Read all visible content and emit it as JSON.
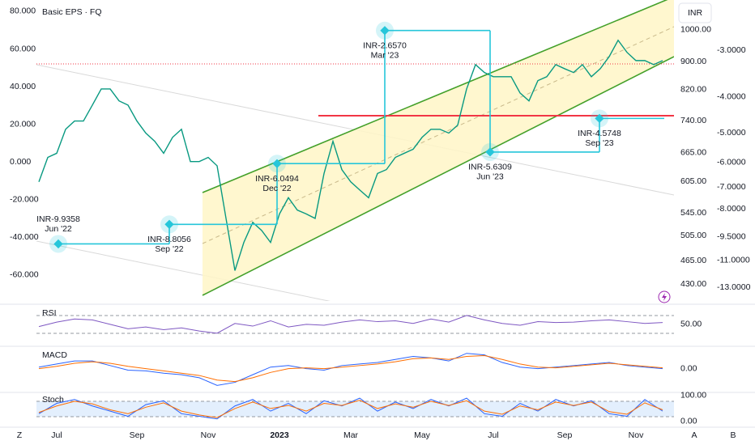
{
  "toolbar_labels": [
    "Z",
    "A",
    "B"
  ],
  "chart_data": [
    {
      "type": "line",
      "title": "Basic EPS · FQ",
      "unit_label": "INR",
      "color": "#089981",
      "categories": [
        null,
        null,
        "Jul",
        null,
        null,
        null,
        null,
        null,
        null,
        null,
        null,
        "Sep",
        null,
        null,
        null,
        null,
        null,
        null,
        null,
        "Nov",
        null,
        null,
        null,
        null,
        null,
        null,
        null,
        "2023",
        null,
        null,
        null,
        null,
        null,
        null,
        null,
        "Mar",
        null,
        null,
        null,
        null,
        null,
        null,
        null,
        "May",
        null,
        null,
        null,
        null,
        null,
        null,
        null,
        "Jul",
        null,
        null,
        null,
        null,
        null,
        null,
        null,
        "Sep",
        null,
        null,
        null,
        null,
        null,
        null,
        null,
        "Nov",
        null,
        null,
        null
      ],
      "values": [
        604,
        655,
        664,
        719,
        739,
        739,
        779,
        822,
        822,
        790,
        779,
        739,
        710,
        691,
        664,
        700,
        719,
        646,
        646,
        655,
        637,
        535,
        450,
        494,
        528,
        514,
        494,
        543,
        573,
        550,
        543,
        535,
        621,
        691,
        629,
        604,
        588,
        573,
        621,
        629,
        655,
        664,
        673,
        700,
        719,
        719,
        710,
        729,
        822,
        891,
        868,
        856,
        856,
        856,
        811,
        790,
        845,
        856,
        891,
        879,
        868,
        891,
        856,
        879,
        915,
        966,
        928,
        903,
        903,
        891,
        903
      ],
      "axis": "y2",
      "ylim": [
        -73,
        86
      ],
      "yticks": [
        {
          "value": 80,
          "label": "80.000"
        },
        {
          "value": 60,
          "label": "60.000"
        },
        {
          "value": 40,
          "label": "40.000"
        },
        {
          "value": 20,
          "label": "20.000"
        },
        {
          "value": 0,
          "label": "0.000"
        },
        {
          "value": -20,
          "label": "-20.000"
        },
        {
          "value": -40,
          "label": "-40.000"
        },
        {
          "value": -60,
          "label": "-60.000"
        }
      ],
      "y2lim": [
        409,
        1104
      ],
      "y2_log": true,
      "y2ticks": [
        {
          "value": 1000,
          "label": "1000.00"
        },
        {
          "value": 900,
          "label": "900.00"
        },
        {
          "value": 820,
          "label": "820.00"
        },
        {
          "value": 740,
          "label": "740.00"
        },
        {
          "value": 665,
          "label": "665.00"
        },
        {
          "value": 605,
          "label": "605.00"
        },
        {
          "value": 545,
          "label": "545.00"
        },
        {
          "value": 505,
          "label": "505.00"
        },
        {
          "value": 465,
          "label": "465.00"
        },
        {
          "value": 430,
          "label": "430.00"
        }
      ],
      "y3lim": [
        -14,
        -2.2
      ],
      "y3_log": true,
      "y3ticks": [
        {
          "value": -3,
          "label": "-3.0000"
        },
        {
          "value": -4,
          "label": "-4.0000"
        },
        {
          "value": -5,
          "label": "-5.0000"
        },
        {
          "value": -6,
          "label": "-6.0000"
        },
        {
          "value": -7,
          "label": "-7.0000"
        },
        {
          "value": -8,
          "label": "-8.0000"
        },
        {
          "value": -9.5,
          "label": "-9.5000"
        },
        {
          "value": -11,
          "label": "-11.0000"
        },
        {
          "value": -13,
          "label": "-13.0000"
        }
      ],
      "eps": {
        "color": "#26c6da",
        "axis": "y3",
        "categories": [
          "Jun '22",
          "Sep '22",
          "Dec '22",
          "Mar '23",
          "Jun '23",
          "Sep '23"
        ],
        "values": [
          -9.9358,
          -8.8056,
          -6.0494,
          -2.657,
          -5.6309,
          -4.5748
        ],
        "value_labels": [
          "INR-9.9358",
          "INR-8.8056",
          "INR-6.0494",
          "INR-2.6570",
          "INR-5.6309",
          "INR-4.5748"
        ]
      }
    },
    {
      "type": "line",
      "title": "RSI",
      "ylim": [
        6,
        88
      ],
      "yticks": [
        {
          "value": 50,
          "label": "50.00"
        }
      ],
      "lines": [
        {
          "color": "#7e57c2",
          "values": [
            45,
            55,
            62,
            60,
            50,
            40,
            44,
            38,
            42,
            35,
            30,
            52,
            46,
            58,
            44,
            50,
            48,
            55,
            60,
            56,
            58,
            52,
            62,
            55,
            70,
            60,
            52,
            48,
            56,
            54,
            55,
            58,
            60,
            56,
            52,
            54
          ]
        }
      ]
    },
    {
      "type": "line",
      "title": "MACD",
      "ylim": [
        -28,
        25
      ],
      "yticks": [
        {
          "value": 0,
          "label": "0.00"
        }
      ],
      "lines": [
        {
          "color": "#2962ff",
          "values": [
            2,
            6,
            10,
            10,
            4,
            -2,
            -3,
            -6,
            -8,
            -12,
            -22,
            -18,
            -8,
            2,
            4,
            0,
            -2,
            4,
            6,
            8,
            12,
            16,
            14,
            10,
            20,
            18,
            8,
            2,
            0,
            2,
            4,
            6,
            8,
            4,
            2,
            0
          ]
        },
        {
          "color": "#ff6d00",
          "values": [
            0,
            3,
            7,
            9,
            7,
            3,
            0,
            -3,
            -6,
            -9,
            -15,
            -17,
            -12,
            -5,
            0,
            1,
            0,
            2,
            4,
            6,
            9,
            13,
            14,
            12,
            16,
            17,
            12,
            6,
            2,
            1,
            3,
            5,
            7,
            5,
            3,
            1
          ]
        }
      ]
    },
    {
      "type": "line",
      "title": "Stoch",
      "ylim": [
        -19,
        106
      ],
      "yticks": [
        {
          "value": 100,
          "label": "100.00"
        },
        {
          "value": 0,
          "label": "0.00"
        }
      ],
      "lines": [
        {
          "color": "#2962ff",
          "values": [
            30,
            70,
            85,
            60,
            40,
            20,
            65,
            80,
            30,
            20,
            10,
            60,
            85,
            40,
            70,
            30,
            80,
            60,
            90,
            40,
            75,
            50,
            85,
            60,
            90,
            30,
            20,
            70,
            40,
            85,
            60,
            80,
            30,
            20,
            85,
            40
          ]
        },
        {
          "color": "#ff6d00",
          "values": [
            35,
            60,
            78,
            68,
            45,
            30,
            55,
            72,
            40,
            25,
            15,
            50,
            75,
            50,
            62,
            40,
            70,
            62,
            82,
            50,
            68,
            55,
            78,
            62,
            80,
            40,
            28,
            60,
            45,
            75,
            62,
            75,
            38,
            28,
            72,
            45
          ]
        }
      ]
    }
  ]
}
